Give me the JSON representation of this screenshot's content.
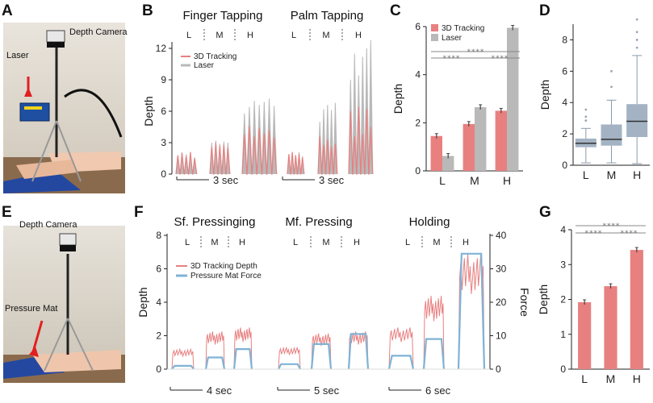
{
  "panels": {
    "A": {
      "letter": "A",
      "depth_camera": "Depth Camera",
      "laser": "Laser"
    },
    "B": {
      "letter": "B",
      "title_left": "Finger Tapping",
      "title_right": "Palm Tapping",
      "ylabel": "Depth",
      "yticks": [
        "0",
        "3",
        "6",
        "9",
        "12"
      ],
      "legend": [
        "3D Tracking",
        "Laser"
      ],
      "scale": "3 sec",
      "levels": [
        "L",
        "M",
        "H"
      ]
    },
    "C": {
      "letter": "C"
    },
    "D": {
      "letter": "D"
    },
    "E": {
      "letter": "E",
      "depth_camera": "Depth Camera",
      "pressure_mat": "Pressure Mat"
    },
    "F": {
      "letter": "F",
      "titles": [
        "Sf. Pressinging",
        "Mf. Pressing",
        "Holding"
      ],
      "ylabel": "Depth",
      "ylabel_right": "Force",
      "yticks": [
        "0",
        "2",
        "4",
        "6",
        "8"
      ],
      "yticks_right": [
        "0",
        "10",
        "20",
        "30",
        "40"
      ],
      "legend": [
        "3D Tracking Depth",
        "Pressure Mat Force"
      ],
      "scales": [
        "4 sec",
        "5 sec",
        "6 sec"
      ],
      "levels": [
        "L",
        "M",
        "H"
      ]
    },
    "G": {
      "letter": "G"
    }
  },
  "colors": {
    "tracking": "#e88080",
    "laser": "#b9b9b9",
    "force": "#7fb3d5",
    "box": "#a3b3c4"
  },
  "chart_data": [
    {
      "id": "C",
      "type": "bar",
      "categories": [
        "L",
        "M",
        "H"
      ],
      "series": [
        {
          "name": "3D Tracking",
          "values": [
            1.45,
            1.95,
            2.5
          ]
        },
        {
          "name": "Laser",
          "values": [
            0.62,
            2.65,
            5.95
          ]
        }
      ],
      "ylabel": "Depth",
      "ylim": [
        0,
        6
      ],
      "yticks": [
        "0",
        "2",
        "4",
        "6"
      ],
      "significance": [
        "****",
        "****",
        "****"
      ]
    },
    {
      "id": "D",
      "type": "box",
      "categories": [
        "L",
        "M",
        "H"
      ],
      "boxes": [
        {
          "min": 0.15,
          "q1": 1.15,
          "median": 1.4,
          "q3": 1.7,
          "max": 2.35,
          "outliers": [
            2.85,
            3.1,
            3.55
          ]
        },
        {
          "min": 0.15,
          "q1": 1.25,
          "median": 1.65,
          "q3": 2.6,
          "max": 4.15,
          "outliers": [
            5.0,
            6.0
          ]
        },
        {
          "min": 0.1,
          "q1": 1.8,
          "median": 2.8,
          "q3": 3.9,
          "max": 7.0,
          "outliers": [
            7.5,
            8.0,
            8.5,
            9.3
          ]
        }
      ],
      "ylabel": "Depth",
      "ylim": [
        0,
        9
      ],
      "yticks": [
        "0",
        "2",
        "4",
        "6",
        "8"
      ]
    },
    {
      "id": "G",
      "type": "bar",
      "categories": [
        "L",
        "M",
        "H"
      ],
      "series": [
        {
          "name": "3D Tracking",
          "values": [
            1.92,
            2.38,
            3.42
          ]
        }
      ],
      "ylabel": "Depth",
      "ylim": [
        0,
        4
      ],
      "yticks": [
        "0",
        "1",
        "2",
        "3",
        "4"
      ],
      "significance": [
        "****",
        "****",
        "****"
      ]
    }
  ]
}
